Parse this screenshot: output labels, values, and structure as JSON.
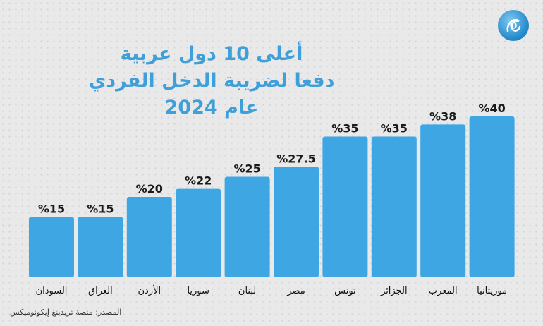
{
  "title_lines": [
    "أعلى 10 دول عربية",
    "دفعا لضريبة الدخل الفردي",
    "عام 2024"
  ],
  "source": "المصدر: منصة تريدينغ إيكونوميكس",
  "logo": "aljazeera-logo",
  "colors": {
    "bar": "#3fa6e4",
    "title": "#3f9fd9",
    "background": "#e9e9e9"
  },
  "chart_data": {
    "type": "bar",
    "title": "أعلى 10 دول عربية دفعا لضريبة الدخل الفردي عام 2024",
    "categories": [
      "السودان",
      "العراق",
      "الأردن",
      "سوريا",
      "لبنان",
      "مصر",
      "تونس",
      "الجزائر",
      "المغرب",
      "موريتانيا"
    ],
    "values": [
      15,
      15,
      20,
      22,
      25,
      27.5,
      35,
      35,
      38,
      40
    ],
    "value_labels": [
      "%15",
      "%15",
      "%20",
      "%22",
      "%25",
      "%27.5",
      "%35",
      "%35",
      "%38",
      "%40"
    ],
    "xlabel": "",
    "ylabel": "",
    "ylim": [
      0,
      40
    ],
    "grid": false,
    "legend": "none"
  }
}
